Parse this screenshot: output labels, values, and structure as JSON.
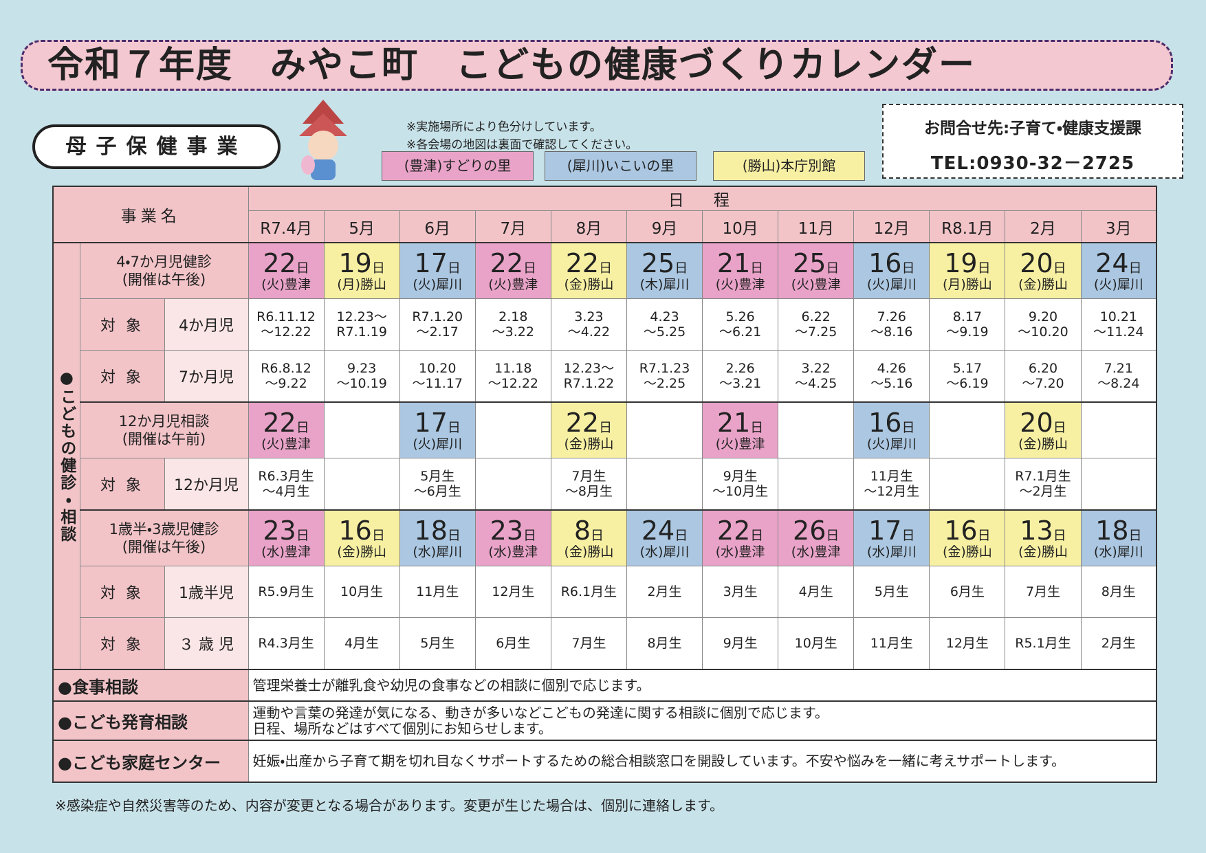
{
  "title": "令和７年度　みやこ町　こどもの健康づくりカレンダー",
  "section_label": "母子保健事業",
  "notes": [
    "※実施場所により色分けしています。",
    "※各会場の地図は裏面で確認してください。"
  ],
  "legend": [
    {
      "label": "(豊津)すどりの里",
      "color": "#e9a3c8"
    },
    {
      "label": "(犀川)いこいの里",
      "color": "#abc7e1"
    },
    {
      "label": "(勝山)本庁別館",
      "color": "#f7f0a3"
    }
  ],
  "contact": {
    "line1": "お問合せ先:子育て・健康支援課",
    "line2": "TEL:0930-32－2725"
  },
  "table": {
    "header_name": "事業名",
    "header_schedule": "日　程",
    "months": [
      "R7.4月",
      "5月",
      "6月",
      "7月",
      "8月",
      "9月",
      "10月",
      "11月",
      "12月",
      "R8.1月",
      "2月",
      "3月"
    ],
    "side_label": "●こどもの健診・相談",
    "sections": [
      {
        "name": [
          "4・7か月児健診",
          "(開催は午後)"
        ],
        "dates": [
          {
            "day": "22",
            "unit": "日",
            "note": "(火)豊津",
            "venue": 0
          },
          {
            "day": "19",
            "unit": "日",
            "note": "(月)勝山",
            "venue": 2
          },
          {
            "day": "17",
            "unit": "日",
            "note": "(火)犀川",
            "venue": 1
          },
          {
            "day": "22",
            "unit": "日",
            "note": "(火)豊津",
            "venue": 0
          },
          {
            "day": "22",
            "unit": "日",
            "note": "(金)勝山",
            "venue": 2
          },
          {
            "day": "25",
            "unit": "日",
            "note": "(木)犀川",
            "venue": 1
          },
          {
            "day": "21",
            "unit": "日",
            "note": "(火)豊津",
            "venue": 0
          },
          {
            "day": "25",
            "unit": "日",
            "note": "(火)豊津",
            "venue": 0
          },
          {
            "day": "16",
            "unit": "日",
            "note": "(火)犀川",
            "venue": 1
          },
          {
            "day": "19",
            "unit": "日",
            "note": "(月)勝山",
            "venue": 2
          },
          {
            "day": "20",
            "unit": "日",
            "note": "(金)勝山",
            "venue": 2
          },
          {
            "day": "24",
            "unit": "日",
            "note": "(火)犀川",
            "venue": 1
          }
        ],
        "targets": [
          {
            "label": "対 象",
            "group": "4か月児",
            "values": [
              [
                "R6.11.12",
                "～12.22"
              ],
              [
                "12.23～",
                "R7.1.19"
              ],
              [
                "R7.1.20",
                "～2.17"
              ],
              [
                "2.18",
                "～3.22"
              ],
              [
                "3.23",
                "～4.22"
              ],
              [
                "4.23",
                "～5.25"
              ],
              [
                "5.26",
                "～6.21"
              ],
              [
                "6.22",
                "～7.25"
              ],
              [
                "7.26",
                "～8.16"
              ],
              [
                "8.17",
                "～9.19"
              ],
              [
                "9.20",
                "～10.20"
              ],
              [
                "10.21",
                "～11.24"
              ]
            ]
          },
          {
            "label": "対 象",
            "group": "7か月児",
            "values": [
              [
                "R6.8.12",
                "～9.22"
              ],
              [
                "9.23",
                "～10.19"
              ],
              [
                "10.20",
                "～11.17"
              ],
              [
                "11.18",
                "～12.22"
              ],
              [
                "12.23～",
                "R7.1.22"
              ],
              [
                "R7.1.23",
                "～2.25"
              ],
              [
                "2.26",
                "～3.21"
              ],
              [
                "3.22",
                "～4.25"
              ],
              [
                "4.26",
                "～5.16"
              ],
              [
                "5.17",
                "～6.19"
              ],
              [
                "6.20",
                "～7.20"
              ],
              [
                "7.21",
                "～8.24"
              ]
            ]
          }
        ]
      },
      {
        "name": [
          "12か月児相談",
          "(開催は午前)"
        ],
        "dates": [
          {
            "day": "22",
            "unit": "日",
            "note": "(火)豊津",
            "venue": 0
          },
          null,
          {
            "day": "17",
            "unit": "日",
            "note": "(火)犀川",
            "venue": 1
          },
          null,
          {
            "day": "22",
            "unit": "日",
            "note": "(金)勝山",
            "venue": 2
          },
          null,
          {
            "day": "21",
            "unit": "日",
            "note": "(火)豊津",
            "venue": 0
          },
          null,
          {
            "day": "16",
            "unit": "日",
            "note": "(火)犀川",
            "venue": 1
          },
          null,
          {
            "day": "20",
            "unit": "日",
            "note": "(金)勝山",
            "venue": 2
          },
          null
        ],
        "targets": [
          {
            "label": "対 象",
            "group": "12か月児",
            "values": [
              [
                "R6.3月生",
                "～4月生"
              ],
              null,
              [
                "5月生",
                "～6月生"
              ],
              null,
              [
                "7月生",
                "～8月生"
              ],
              null,
              [
                "9月生",
                "～10月生"
              ],
              null,
              [
                "11月生",
                "～12月生"
              ],
              null,
              [
                "R7.1月生",
                "～2月生"
              ],
              null
            ]
          }
        ]
      },
      {
        "name": [
          "1歳半・3歳児健診",
          "(開催は午後)"
        ],
        "dates": [
          {
            "day": "23",
            "unit": "日",
            "note": "(水)豊津",
            "venue": 0
          },
          {
            "day": "16",
            "unit": "日",
            "note": "(金)勝山",
            "venue": 2
          },
          {
            "day": "18",
            "unit": "日",
            "note": "(水)犀川",
            "venue": 1
          },
          {
            "day": "23",
            "unit": "日",
            "note": "(水)豊津",
            "venue": 0
          },
          {
            "day": "8",
            "unit": "日",
            "note": "(金)勝山",
            "venue": 2
          },
          {
            "day": "24",
            "unit": "日",
            "note": "(水)犀川",
            "venue": 1
          },
          {
            "day": "22",
            "unit": "日",
            "note": "(水)豊津",
            "venue": 0
          },
          {
            "day": "26",
            "unit": "日",
            "note": "(水)豊津",
            "venue": 0
          },
          {
            "day": "17",
            "unit": "日",
            "note": "(水)犀川",
            "venue": 1
          },
          {
            "day": "16",
            "unit": "日",
            "note": "(金)勝山",
            "venue": 2
          },
          {
            "day": "13",
            "unit": "日",
            "note": "(金)勝山",
            "venue": 2
          },
          {
            "day": "18",
            "unit": "日",
            "note": "(水)犀川",
            "venue": 1
          }
        ],
        "targets": [
          {
            "label": "対 象",
            "group": "1歳半児",
            "values": [
              [
                "R5.9月生"
              ],
              [
                "10月生"
              ],
              [
                "11月生"
              ],
              [
                "12月生"
              ],
              [
                "R6.1月生"
              ],
              [
                "2月生"
              ],
              [
                "3月生"
              ],
              [
                "4月生"
              ],
              [
                "5月生"
              ],
              [
                "6月生"
              ],
              [
                "7月生"
              ],
              [
                "8月生"
              ]
            ]
          },
          {
            "label": "対 象",
            "group": "３ 歳 児",
            "values": [
              [
                "R4.3月生"
              ],
              [
                "4月生"
              ],
              [
                "5月生"
              ],
              [
                "6月生"
              ],
              [
                "7月生"
              ],
              [
                "8月生"
              ],
              [
                "9月生"
              ],
              [
                "10月生"
              ],
              [
                "11月生"
              ],
              [
                "12月生"
              ],
              [
                "R5.1月生"
              ],
              [
                "2月生"
              ]
            ]
          }
        ]
      }
    ],
    "footer_rows": [
      {
        "name": "●食事相談",
        "text": [
          "管理栄養士が離乳食や幼児の食事などの相談に個別で応じます。"
        ]
      },
      {
        "name": "●こども発育相談",
        "text": [
          "運動や言葉の発達が気になる、動きが多いなどこどもの発達に関する相談に個別で応じます。",
          "日程、場所などはすべて個別にお知らせします。"
        ]
      },
      {
        "name": "●こども家庭センター",
        "text": [
          "妊娠・出産から子育て期を切れ目なくサポートするための総合相談窓口を開設しています。不安や悩みを一緒に考えサポートします。"
        ]
      }
    ]
  },
  "footnote": "※感染症や自然災害等のため、内容が変更となる場合があります。変更が生じた場合は、個別に連絡します。"
}
